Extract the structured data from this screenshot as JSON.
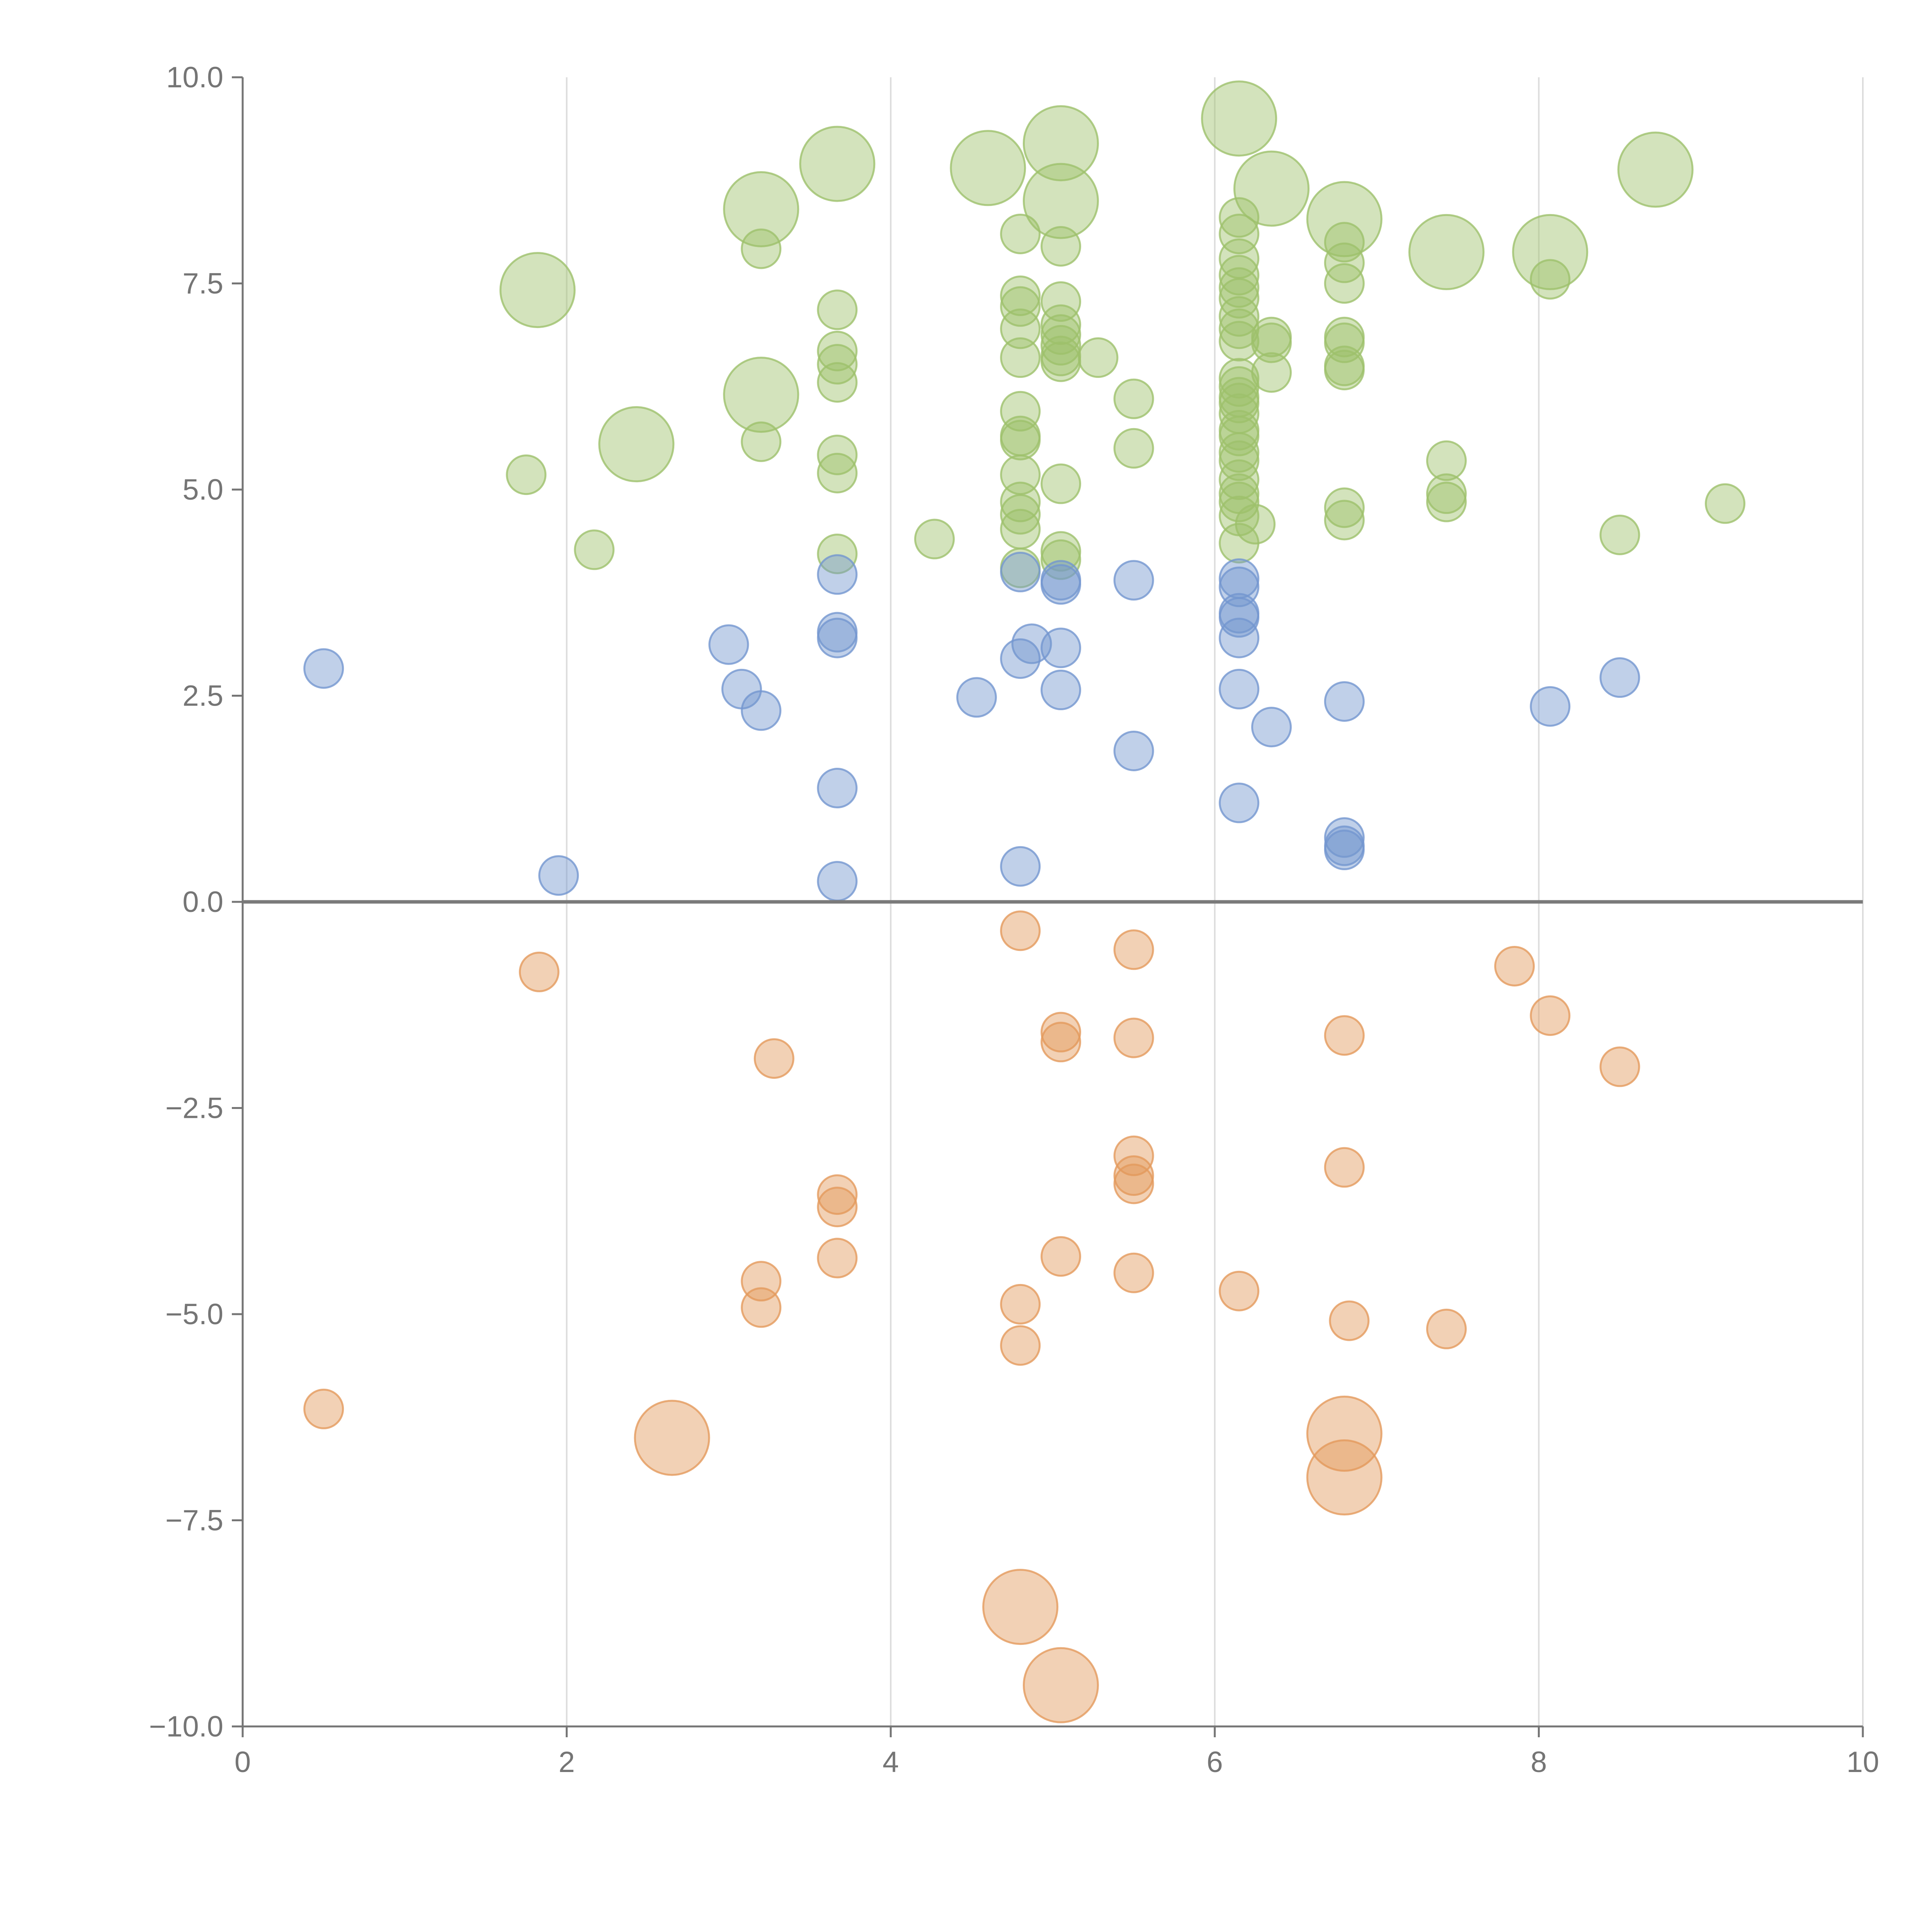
{
  "chart_data": {
    "type": "scatter",
    "title": "",
    "xlabel": "",
    "ylabel": "",
    "xlim": [
      0,
      10
    ],
    "ylim": [
      -10,
      10
    ],
    "grid": "vertical",
    "legend": "none",
    "x_ticks": [
      0,
      2,
      4,
      6,
      8,
      10
    ],
    "x_tick_labels": [
      "0",
      "2",
      "4",
      "6",
      "8",
      "10"
    ],
    "y_ticks": [
      10,
      7.5,
      5,
      2.5,
      0,
      -2.5,
      -5,
      -7.5,
      -10
    ],
    "y_tick_labels": [
      "10.0",
      "7.5",
      "5.0",
      "2.5",
      "0.0",
      "−2.5",
      "−5.0",
      "−7.5",
      "−10.0"
    ],
    "colors": {
      "green": "#9dc16b",
      "blue": "#7396cf",
      "orange": "#e39a5c",
      "axis": "#757575",
      "zero_line": "#7a7a7a",
      "grid": "#dcdcdc"
    },
    "series": [
      {
        "name": "green",
        "color": "#9dc16b",
        "points": [
          [
            6.15,
            9.5,
            "large"
          ],
          [
            5.05,
            9.2,
            "large"
          ],
          [
            3.67,
            8.95,
            "large"
          ],
          [
            4.6,
            8.9,
            "large"
          ],
          [
            8.72,
            8.88,
            "large"
          ],
          [
            6.35,
            8.65,
            "large"
          ],
          [
            5.05,
            8.5,
            "large"
          ],
          [
            3.2,
            8.4,
            "large"
          ],
          [
            6.8,
            8.28,
            "large"
          ],
          [
            7.43,
            7.88,
            "large"
          ],
          [
            8.07,
            7.88,
            "large"
          ],
          [
            1.82,
            7.42,
            "large"
          ],
          [
            3.2,
            6.15,
            "large"
          ],
          [
            2.43,
            5.55,
            "large"
          ],
          [
            4.8,
            8.1,
            "small"
          ],
          [
            6.15,
            8.3,
            "small"
          ],
          [
            6.15,
            8.1,
            "small"
          ],
          [
            3.2,
            7.92,
            "small"
          ],
          [
            5.05,
            7.95,
            "small"
          ],
          [
            6.8,
            8.0,
            "small"
          ],
          [
            6.15,
            7.8,
            "small"
          ],
          [
            6.8,
            7.75,
            "small"
          ],
          [
            6.15,
            7.6,
            "small"
          ],
          [
            8.07,
            7.55,
            "small"
          ],
          [
            6.15,
            7.45,
            "small"
          ],
          [
            6.8,
            7.5,
            "small"
          ],
          [
            4.8,
            7.35,
            "small"
          ],
          [
            6.15,
            7.32,
            "small"
          ],
          [
            5.05,
            7.28,
            "small"
          ],
          [
            4.8,
            7.22,
            "small"
          ],
          [
            3.67,
            7.18,
            "small"
          ],
          [
            6.15,
            7.1,
            "small"
          ],
          [
            5.05,
            7.0,
            "small"
          ],
          [
            4.8,
            6.95,
            "small"
          ],
          [
            6.15,
            6.95,
            "small"
          ],
          [
            5.05,
            6.88,
            "small"
          ],
          [
            6.35,
            6.85,
            "small"
          ],
          [
            6.8,
            6.85,
            "small"
          ],
          [
            6.15,
            6.8,
            "small"
          ],
          [
            6.35,
            6.78,
            "small"
          ],
          [
            5.05,
            6.75,
            "small"
          ],
          [
            6.8,
            6.78,
            "small"
          ],
          [
            3.67,
            6.68,
            "small"
          ],
          [
            5.05,
            6.62,
            "small"
          ],
          [
            4.8,
            6.6,
            "small"
          ],
          [
            5.28,
            6.6,
            "small"
          ],
          [
            5.05,
            6.55,
            "small"
          ],
          [
            3.67,
            6.52,
            "small"
          ],
          [
            6.8,
            6.5,
            "small"
          ],
          [
            6.8,
            6.45,
            "small"
          ],
          [
            6.35,
            6.42,
            "small"
          ],
          [
            6.15,
            6.35,
            "small"
          ],
          [
            3.67,
            6.3,
            "small"
          ],
          [
            6.15,
            6.25,
            "small"
          ],
          [
            6.15,
            6.12,
            "small"
          ],
          [
            5.5,
            6.1,
            "small"
          ],
          [
            6.15,
            6.05,
            "small"
          ],
          [
            4.8,
            5.95,
            "small"
          ],
          [
            6.15,
            5.92,
            "small"
          ],
          [
            6.15,
            5.72,
            "small"
          ],
          [
            6.15,
            5.65,
            "small"
          ],
          [
            4.8,
            5.65,
            "small"
          ],
          [
            4.8,
            5.6,
            "small"
          ],
          [
            3.2,
            5.58,
            "small"
          ],
          [
            5.5,
            5.5,
            "small"
          ],
          [
            6.15,
            5.45,
            "small"
          ],
          [
            3.67,
            5.42,
            "small"
          ],
          [
            6.15,
            5.35,
            "small"
          ],
          [
            7.43,
            5.35,
            "small"
          ],
          [
            3.67,
            5.2,
            "small"
          ],
          [
            1.75,
            5.18,
            "small"
          ],
          [
            4.8,
            5.18,
            "small"
          ],
          [
            6.15,
            5.12,
            "small"
          ],
          [
            5.05,
            5.07,
            "small"
          ],
          [
            6.15,
            4.95,
            "small"
          ],
          [
            7.43,
            4.95,
            "small"
          ],
          [
            4.8,
            4.85,
            "small"
          ],
          [
            6.15,
            4.85,
            "small"
          ],
          [
            7.43,
            4.85,
            "small"
          ],
          [
            9.15,
            4.83,
            "small"
          ],
          [
            6.8,
            4.78,
            "small"
          ],
          [
            4.8,
            4.7,
            "small"
          ],
          [
            6.15,
            4.68,
            "small"
          ],
          [
            6.8,
            4.63,
            "small"
          ],
          [
            6.25,
            4.58,
            "small"
          ],
          [
            4.8,
            4.52,
            "small"
          ],
          [
            8.5,
            4.45,
            "small"
          ],
          [
            4.27,
            4.4,
            "small"
          ],
          [
            6.15,
            4.35,
            "small"
          ],
          [
            2.17,
            4.27,
            "small"
          ],
          [
            5.05,
            4.25,
            "small"
          ],
          [
            3.67,
            4.22,
            "small"
          ],
          [
            5.05,
            4.15,
            "small"
          ],
          [
            4.8,
            4.05,
            "small"
          ]
        ]
      },
      {
        "name": "blue",
        "color": "#7396cf",
        "points": [
          [
            4.8,
            4.0,
            "small"
          ],
          [
            3.67,
            3.97,
            "small"
          ],
          [
            6.15,
            3.92,
            "small"
          ],
          [
            5.5,
            3.9,
            "small"
          ],
          [
            5.05,
            3.9,
            "small"
          ],
          [
            5.05,
            3.85,
            "small"
          ],
          [
            6.15,
            3.82,
            "small"
          ],
          [
            6.15,
            3.5,
            "small"
          ],
          [
            6.15,
            3.45,
            "small"
          ],
          [
            3.67,
            3.27,
            "small"
          ],
          [
            3.67,
            3.2,
            "small"
          ],
          [
            6.15,
            3.2,
            "small"
          ],
          [
            4.87,
            3.13,
            "small"
          ],
          [
            3.0,
            3.12,
            "small"
          ],
          [
            5.05,
            3.08,
            "small"
          ],
          [
            4.8,
            2.95,
            "small"
          ],
          [
            0.5,
            2.83,
            "small"
          ],
          [
            8.5,
            2.72,
            "small"
          ],
          [
            3.08,
            2.58,
            "small"
          ],
          [
            6.15,
            2.58,
            "small"
          ],
          [
            5.05,
            2.57,
            "small"
          ],
          [
            4.53,
            2.48,
            "small"
          ],
          [
            6.8,
            2.43,
            "small"
          ],
          [
            8.07,
            2.37,
            "small"
          ],
          [
            3.2,
            2.32,
            "small"
          ],
          [
            6.35,
            2.12,
            "small"
          ],
          [
            5.5,
            1.83,
            "small"
          ],
          [
            3.67,
            1.38,
            "small"
          ],
          [
            6.15,
            1.2,
            "small"
          ],
          [
            6.8,
            0.78,
            "small"
          ],
          [
            6.8,
            0.68,
            "small"
          ],
          [
            6.8,
            0.63,
            "small"
          ],
          [
            4.8,
            0.43,
            "small"
          ],
          [
            1.95,
            0.32,
            "small"
          ],
          [
            3.67,
            0.25,
            "small"
          ]
        ]
      },
      {
        "name": "orange",
        "color": "#e39a5c",
        "points": [
          [
            4.8,
            -0.35,
            "small"
          ],
          [
            5.5,
            -0.58,
            "small"
          ],
          [
            7.85,
            -0.78,
            "small"
          ],
          [
            1.83,
            -0.85,
            "small"
          ],
          [
            8.07,
            -1.38,
            "small"
          ],
          [
            5.05,
            -1.58,
            "small"
          ],
          [
            6.8,
            -1.62,
            "small"
          ],
          [
            5.5,
            -1.65,
            "small"
          ],
          [
            5.05,
            -1.7,
            "small"
          ],
          [
            3.28,
            -1.9,
            "small"
          ],
          [
            8.5,
            -2.0,
            "small"
          ],
          [
            5.5,
            -3.08,
            "small"
          ],
          [
            6.8,
            -3.22,
            "small"
          ],
          [
            5.5,
            -3.32,
            "small"
          ],
          [
            5.5,
            -3.42,
            "small"
          ],
          [
            3.67,
            -3.55,
            "small"
          ],
          [
            3.67,
            -3.7,
            "small"
          ],
          [
            5.05,
            -4.3,
            "small"
          ],
          [
            3.67,
            -4.32,
            "small"
          ],
          [
            5.5,
            -4.5,
            "small"
          ],
          [
            3.2,
            -4.6,
            "small"
          ],
          [
            6.15,
            -4.72,
            "small"
          ],
          [
            4.8,
            -4.88,
            "small"
          ],
          [
            3.2,
            -4.92,
            "small"
          ],
          [
            6.83,
            -5.08,
            "small"
          ],
          [
            7.43,
            -5.18,
            "small"
          ],
          [
            4.8,
            -5.38,
            "small"
          ],
          [
            0.5,
            -6.15,
            "small"
          ],
          [
            2.65,
            -6.5,
            "large"
          ],
          [
            6.8,
            -6.45,
            "large"
          ],
          [
            6.8,
            -6.98,
            "large"
          ],
          [
            4.8,
            -8.55,
            "large"
          ],
          [
            5.05,
            -9.5,
            "large"
          ]
        ]
      }
    ]
  }
}
